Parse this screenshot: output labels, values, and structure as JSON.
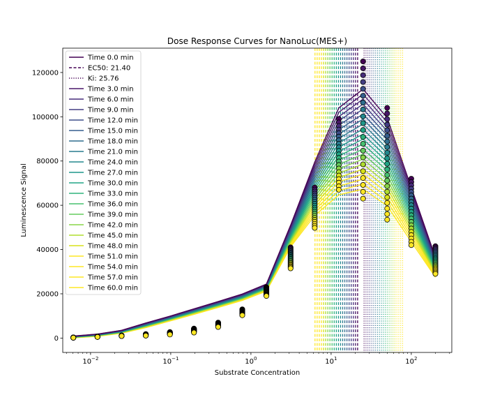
{
  "chart_data": {
    "type": "line",
    "title": "Dose Response Curves for NanoLuc(MES+)",
    "xlabel": "Substrate Concentration",
    "ylabel": "Luminescence Signal",
    "xscale": "log",
    "xlim": [
      0.0045,
      320
    ],
    "ylim": [
      -6500,
      131000
    ],
    "grid": false,
    "legend_position": "top-left",
    "x_tick_labels": [
      "10^-2",
      "10^-1",
      "10^0",
      "10^1",
      "10^2"
    ],
    "y_tick_labels": [
      "0",
      "20000",
      "40000",
      "60000",
      "80000",
      "100000",
      "120000"
    ],
    "x": [
      0.0061,
      0.0122,
      0.0244,
      0.0488,
      0.0977,
      0.195,
      0.39,
      0.78,
      1.56,
      3.125,
      6.25,
      12.5,
      25,
      50,
      100,
      200
    ],
    "first_series": {
      "name": "Time 0.0 min",
      "measured": [
        300,
        700,
        1200,
        1800,
        2700,
        4300,
        7000,
        13000,
        23000,
        41000,
        68000,
        99000,
        125000,
        104000,
        72000,
        41500
      ],
      "fit": [
        900,
        1800,
        3500,
        6800,
        9900,
        13200,
        16500,
        19900,
        24400,
        51000,
        79500,
        104000,
        112500,
        99500,
        68000,
        36500
      ]
    },
    "last_series": {
      "name": "Time 60.0 min",
      "measured": [
        150,
        500,
        900,
        1100,
        1600,
        2500,
        5000,
        10300,
        19000,
        31500,
        49800,
        67000,
        63000,
        53500,
        42000,
        29000
      ],
      "fit": [
        100,
        800,
        2200,
        4700,
        7700,
        10700,
        13800,
        17000,
        21200,
        41200,
        55400,
        64700,
        67300,
        59800,
        43500,
        27500
      ]
    },
    "ec50_label": "EC50: 21.40",
    "ki_label": "Ki: 25.76",
    "ec50_range": [
      6.3,
      21.4
    ],
    "ki_range": [
      25.76,
      78
    ],
    "series": [
      {
        "name": "Time 0.0 min",
        "color": "#440154"
      },
      {
        "name": "Time 3.0 min",
        "color": "#481769"
      },
      {
        "name": "Time 6.0 min",
        "color": "#472a7a"
      },
      {
        "name": "Time 9.0 min",
        "color": "#433d84"
      },
      {
        "name": "Time 12.0 min",
        "color": "#3d4e8a"
      },
      {
        "name": "Time 15.0 min",
        "color": "#355e8d"
      },
      {
        "name": "Time 18.0 min",
        "color": "#2e6d8e"
      },
      {
        "name": "Time 21.0 min",
        "color": "#297b8e"
      },
      {
        "name": "Time 24.0 min",
        "color": "#23898e"
      },
      {
        "name": "Time 27.0 min",
        "color": "#1f978b"
      },
      {
        "name": "Time 30.0 min",
        "color": "#21a585"
      },
      {
        "name": "Time 33.0 min",
        "color": "#2eb37c"
      },
      {
        "name": "Time 36.0 min",
        "color": "#46c06f"
      },
      {
        "name": "Time 39.0 min",
        "color": "#65cb5e"
      },
      {
        "name": "Time 42.0 min",
        "color": "#89d548"
      },
      {
        "name": "Time 45.0 min",
        "color": "#b0dd2f"
      },
      {
        "name": "Time 48.0 min",
        "color": "#d8e219"
      },
      {
        "name": "Time 51.0 min",
        "color": "#fde725"
      },
      {
        "name": "Time 54.0 min",
        "color": "#fde725"
      },
      {
        "name": "Time 57.0 min",
        "color": "#fde725"
      },
      {
        "name": "Time 60.0 min",
        "color": "#fde725"
      }
    ]
  }
}
